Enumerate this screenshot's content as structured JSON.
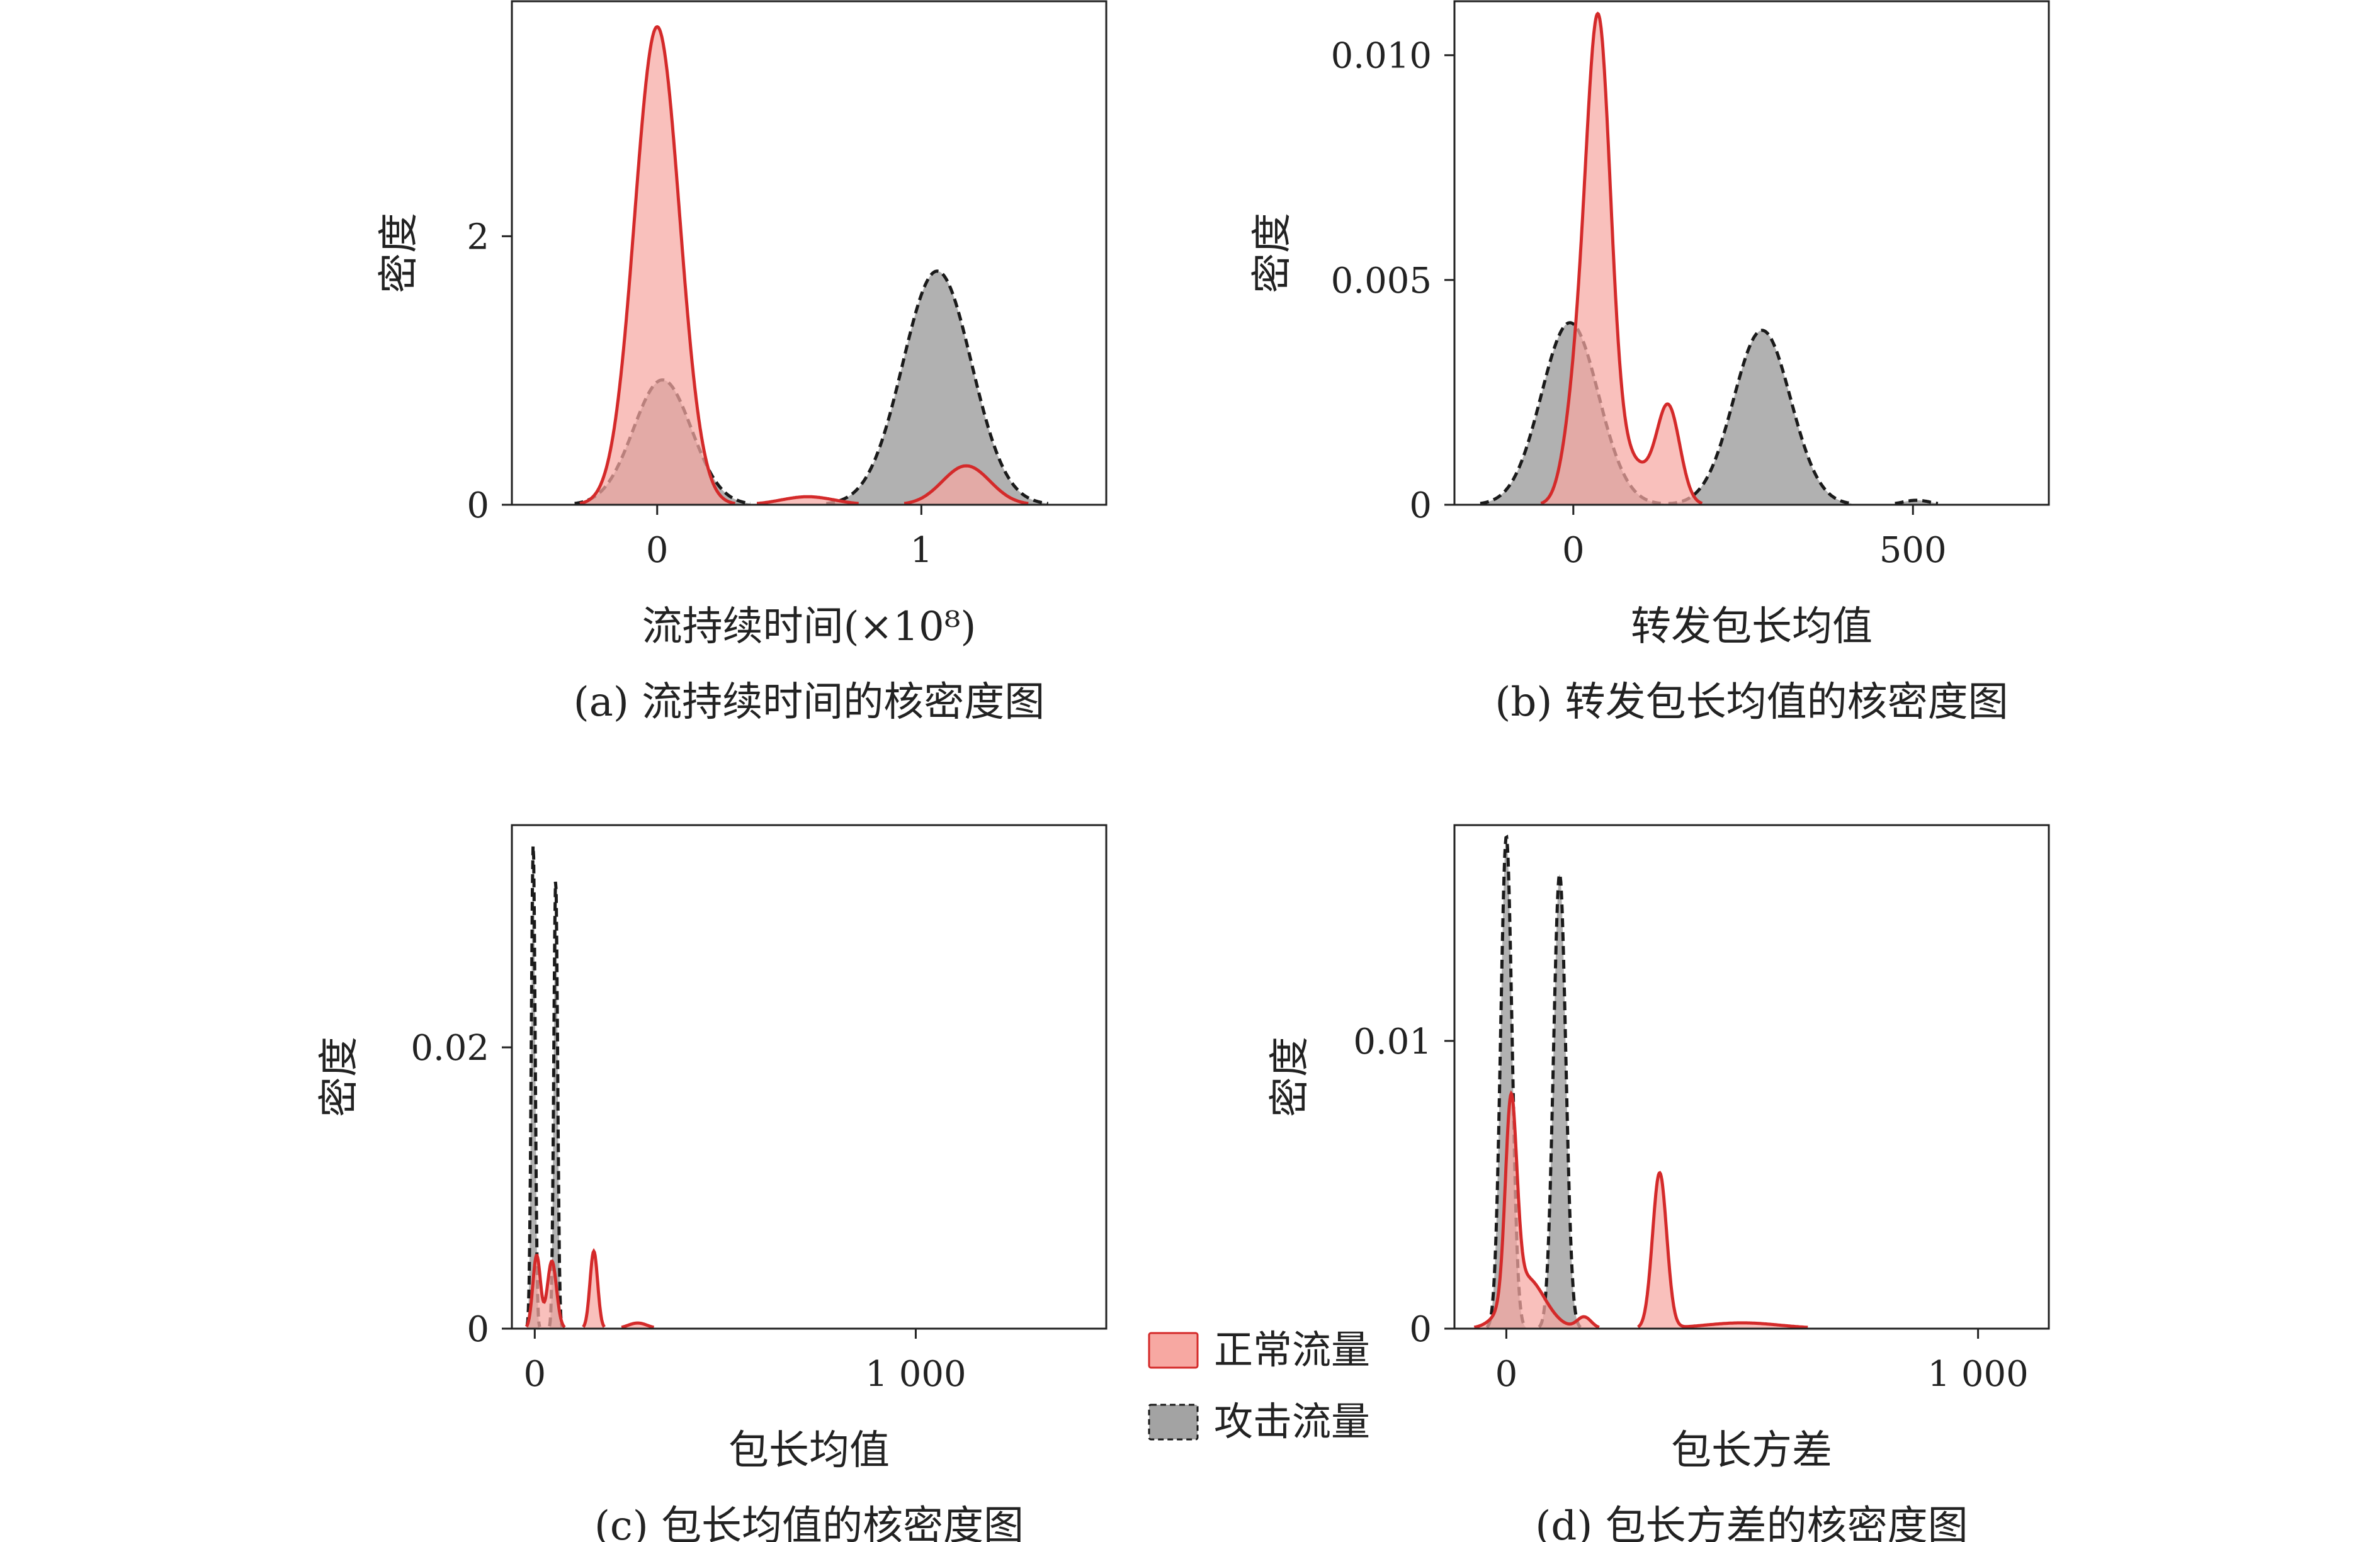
{
  "colors": {
    "normal_fill": "#f7a8a2",
    "normal_line": "#d42a2a",
    "attack_fill": "#a3a3a3",
    "attack_line": "#1a1a1a"
  },
  "legend": {
    "normal": "正常流量",
    "attack": "攻击流量"
  },
  "chart_data": [
    {
      "type": "area",
      "caption": "(a) 流持续时间的核密度图",
      "xlabel": "流持续时间(×10⁸)",
      "ylabel": "密度",
      "xlim": [
        -0.55,
        1.7
      ],
      "ylim": [
        0,
        3.75
      ],
      "xticks": [
        0,
        1
      ],
      "xtick_labels": [
        "0",
        "1"
      ],
      "yticks": [
        0,
        2
      ],
      "ytick_labels": [
        "0",
        "2"
      ],
      "series": [
        {
          "name": "正常流量",
          "components": [
            {
              "mean": 0.0,
              "sd": 0.085,
              "peak": 3.56
            },
            {
              "mean": 0.57,
              "sd": 0.1,
              "peak": 0.06
            },
            {
              "mean": 1.17,
              "sd": 0.09,
              "peak": 0.29
            }
          ]
        },
        {
          "name": "攻击流量",
          "components": [
            {
              "mean": 0.02,
              "sd": 0.11,
              "peak": 0.93
            },
            {
              "mean": 1.06,
              "sd": 0.13,
              "peak": 1.74
            }
          ]
        }
      ]
    },
    {
      "type": "area",
      "caption": "(b) 转发包长均值的核密度图",
      "xlabel": "转发包长均值",
      "ylabel": "密度",
      "xlim": [
        -175,
        700
      ],
      "ylim": [
        0,
        0.0112
      ],
      "xticks": [
        0,
        500
      ],
      "xtick_labels": [
        "0",
        "500"
      ],
      "yticks": [
        0,
        0.005,
        0.01
      ],
      "ytick_labels": [
        "0",
        "0.005",
        "0.010"
      ],
      "series": [
        {
          "name": "正常流量",
          "components": [
            {
              "mean": 37,
              "sd": 18,
              "peak": 0.0101
            },
            {
              "mean": 5,
              "sd": 18,
              "peak": 0.0022
            },
            {
              "mean": 140,
              "sd": 17,
              "peak": 0.0021
            },
            {
              "mean": 80,
              "sd": 30,
              "peak": 0.001
            }
          ]
        },
        {
          "name": "攻击流量",
          "components": [
            {
              "mean": -5,
              "sd": 42,
              "peak": 0.00405
            },
            {
              "mean": 278,
              "sd": 42,
              "peak": 0.00388
            },
            {
              "mean": 505,
              "sd": 20,
              "peak": 0.0001
            }
          ]
        }
      ]
    },
    {
      "type": "area",
      "caption": "(c) 包长均值的核密度图",
      "xlabel": "包长均值",
      "ylabel": "密度",
      "xlim": [
        -60,
        1500
      ],
      "ylim": [
        0,
        0.0358
      ],
      "xticks": [
        0,
        1000
      ],
      "xtick_labels": [
        "0",
        "1 000"
      ],
      "yticks": [
        0,
        0.02
      ],
      "ytick_labels": [
        "0",
        "0.02"
      ],
      "series": [
        {
          "name": "正常流量",
          "components": [
            {
              "mean": 5,
              "sd": 10,
              "peak": 0.0052
            },
            {
              "mean": 45,
              "sd": 12,
              "peak": 0.0048
            },
            {
              "mean": 155,
              "sd": 10,
              "peak": 0.0055
            },
            {
              "mean": 270,
              "sd": 25,
              "peak": 0.0004
            }
          ]
        },
        {
          "name": "攻击流量",
          "components": [
            {
              "mean": -4,
              "sd": 5,
              "peak": 0.0345
            },
            {
              "mean": 55,
              "sd": 5,
              "peak": 0.032
            }
          ]
        }
      ]
    },
    {
      "type": "area",
      "caption": "(d) 包长方差的核密度图",
      "xlabel": "包长方差",
      "ylabel": "密度",
      "xlim": [
        -110,
        1150
      ],
      "ylim": [
        0,
        0.0175
      ],
      "xticks": [
        0,
        1000
      ],
      "xtick_labels": [
        "0",
        "1 000"
      ],
      "yticks": [
        0,
        0.01
      ],
      "ytick_labels": [
        "0",
        "0.01"
      ],
      "series": [
        {
          "name": "正常流量",
          "components": [
            {
              "mean": 10,
              "sd": 12,
              "peak": 0.0068
            },
            {
              "mean": 40,
              "sd": 40,
              "peak": 0.0018
            },
            {
              "mean": 165,
              "sd": 15,
              "peak": 0.0004
            },
            {
              "mean": 325,
              "sd": 15,
              "peak": 0.0054
            },
            {
              "mean": 500,
              "sd": 80,
              "peak": 0.0002
            }
          ]
        },
        {
          "name": "攻击流量",
          "components": [
            {
              "mean": 0,
              "sd": 12,
              "peak": 0.0171
            },
            {
              "mean": 113,
              "sd": 13,
              "peak": 0.0158
            }
          ]
        }
      ]
    }
  ]
}
